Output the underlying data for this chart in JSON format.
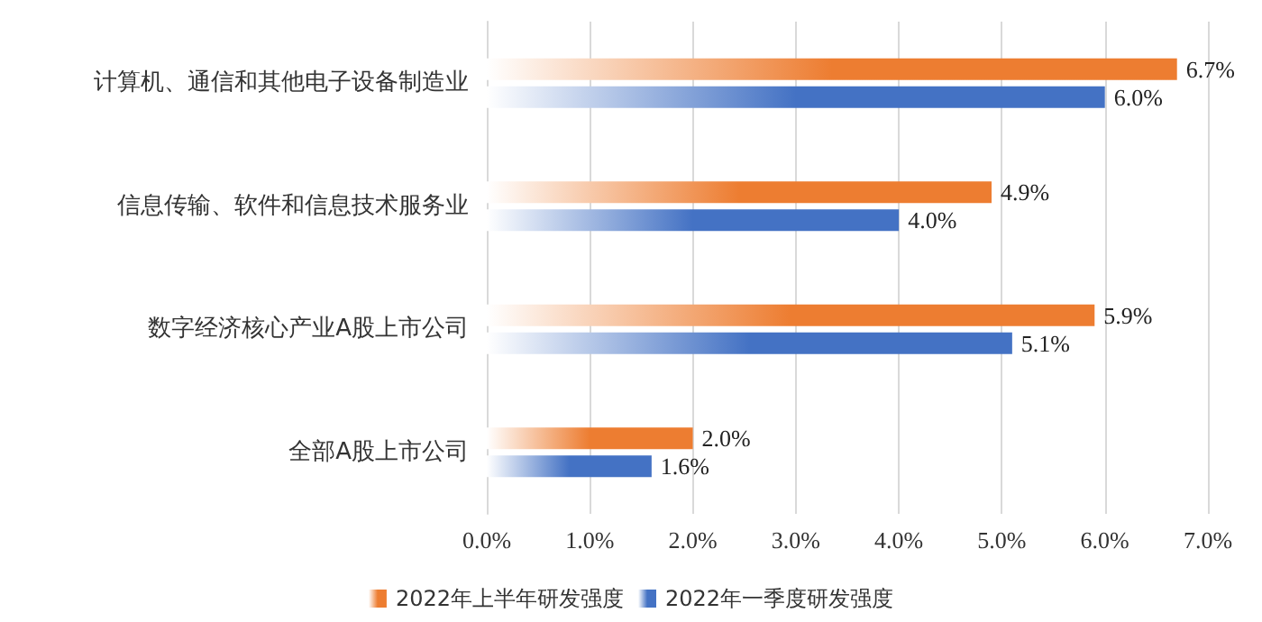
{
  "chart_data": {
    "type": "bar",
    "orientation": "horizontal",
    "categories": [
      "计算机、通信和其他电子设备制造业",
      "信息传输、软件和信息技术服务业",
      "数字经济核心产业A股上市公司",
      "全部A股上市公司"
    ],
    "series": [
      {
        "name": "2022年上半年研发强度",
        "color": "#ed7d31",
        "values": [
          6.7,
          4.9,
          5.9,
          2.0
        ],
        "value_labels": [
          "6.7%",
          "4.9%",
          "5.9%",
          "2.0%"
        ]
      },
      {
        "name": "2022年一季度研发强度",
        "color": "#4472c4",
        "values": [
          6.0,
          4.0,
          5.1,
          1.6
        ],
        "value_labels": [
          "6.0%",
          "4.0%",
          "5.1%",
          "1.6%"
        ]
      }
    ],
    "xlim": [
      0,
      7
    ],
    "xticks": [
      {
        "value": 0,
        "label": "0.0%"
      },
      {
        "value": 1,
        "label": "1.0%"
      },
      {
        "value": 2,
        "label": "2.0%"
      },
      {
        "value": 3,
        "label": "3.0%"
      },
      {
        "value": 4,
        "label": "4.0%"
      },
      {
        "value": 5,
        "label": "5.0%"
      },
      {
        "value": 6,
        "label": "6.0%"
      },
      {
        "value": 7,
        "label": "7.0%"
      }
    ],
    "grid": "x",
    "legend": "bottom"
  }
}
